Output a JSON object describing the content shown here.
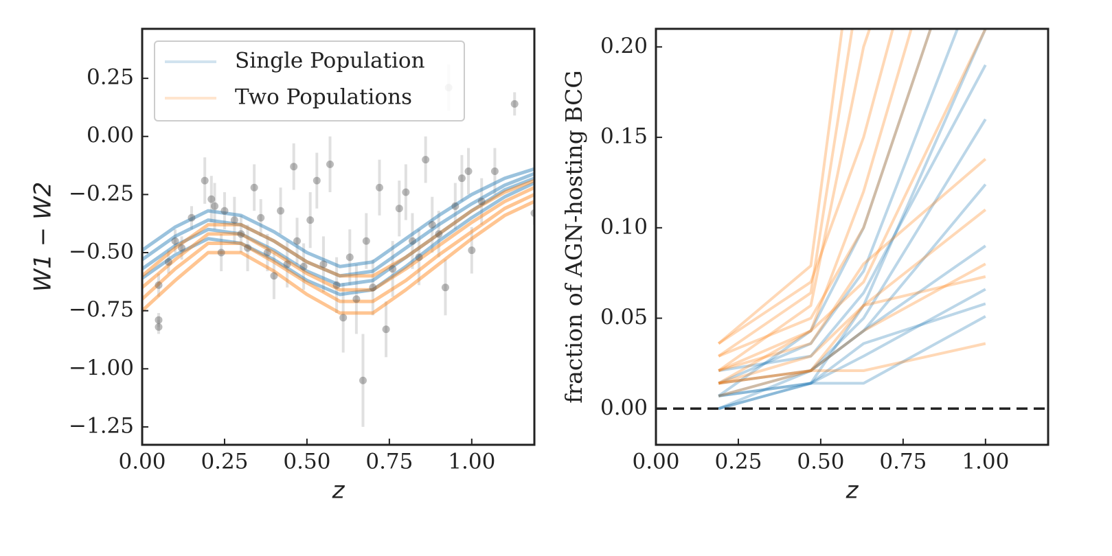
{
  "chart_data": [
    {
      "type": "scatter_curves",
      "xlabel": "z",
      "ylabel": "W1 − W2",
      "xlim": [
        0,
        1.19
      ],
      "ylim": [
        -1.327,
        0.463
      ],
      "xticks": [
        {
          "value": 0,
          "label": "0.00"
        },
        {
          "value": 0.25,
          "label": "0.25"
        },
        {
          "value": 0.5,
          "label": "0.50"
        },
        {
          "value": 0.75,
          "label": "0.75"
        },
        {
          "value": 1,
          "label": "1.00"
        }
      ],
      "yticks": [
        {
          "value": 0.25,
          "label": "0.25"
        },
        {
          "value": 0,
          "label": "0.00"
        },
        {
          "value": -0.25,
          "label": "−0.25"
        },
        {
          "value": -0.5,
          "label": "−0.50"
        },
        {
          "value": -0.75,
          "label": "−0.75"
        },
        {
          "value": -1,
          "label": "−1.00"
        },
        {
          "value": -1.25,
          "label": "−1.25"
        }
      ],
      "legend": "upper left",
      "x": [
        0,
        0.1,
        0.2,
        0.3,
        0.4,
        0.5,
        0.6,
        0.7,
        0.8,
        0.9,
        1.0,
        1.1,
        1.19
      ],
      "series": [
        {
          "name": "Single Population",
          "color": "#1f77b4",
          "curves": [
            [
              -0.49,
              -0.39,
              -0.32,
              -0.34,
              -0.41,
              -0.5,
              -0.56,
              -0.54,
              -0.44,
              -0.34,
              -0.25,
              -0.18,
              -0.14
            ],
            [
              -0.53,
              -0.43,
              -0.36,
              -0.38,
              -0.45,
              -0.54,
              -0.6,
              -0.58,
              -0.48,
              -0.38,
              -0.29,
              -0.21,
              -0.16
            ],
            [
              -0.57,
              -0.47,
              -0.4,
              -0.42,
              -0.49,
              -0.58,
              -0.64,
              -0.62,
              -0.52,
              -0.42,
              -0.32,
              -0.23,
              -0.18
            ],
            [
              -0.61,
              -0.51,
              -0.44,
              -0.46,
              -0.53,
              -0.62,
              -0.68,
              -0.66,
              -0.56,
              -0.45,
              -0.35,
              -0.26,
              -0.2
            ]
          ]
        },
        {
          "name": "Two Populations",
          "color": "#ff7f0e",
          "curves": [
            [
              -0.6,
              -0.48,
              -0.38,
              -0.38,
              -0.45,
              -0.54,
              -0.6,
              -0.6,
              -0.52,
              -0.42,
              -0.32,
              -0.24,
              -0.19
            ],
            [
              -0.65,
              -0.53,
              -0.42,
              -0.42,
              -0.5,
              -0.59,
              -0.66,
              -0.66,
              -0.57,
              -0.47,
              -0.37,
              -0.28,
              -0.22
            ],
            [
              -0.7,
              -0.57,
              -0.46,
              -0.46,
              -0.54,
              -0.63,
              -0.71,
              -0.71,
              -0.62,
              -0.51,
              -0.41,
              -0.31,
              -0.25
            ],
            [
              -0.75,
              -0.62,
              -0.5,
              -0.5,
              -0.58,
              -0.68,
              -0.76,
              -0.76,
              -0.66,
              -0.55,
              -0.44,
              -0.34,
              -0.28
            ]
          ]
        }
      ],
      "points": {
        "color": "#555555",
        "x": [
          0.05,
          0.05,
          0.05,
          0.08,
          0.1,
          0.12,
          0.15,
          0.19,
          0.21,
          0.22,
          0.24,
          0.25,
          0.28,
          0.3,
          0.32,
          0.34,
          0.36,
          0.38,
          0.4,
          0.42,
          0.44,
          0.46,
          0.47,
          0.49,
          0.51,
          0.53,
          0.55,
          0.57,
          0.59,
          0.61,
          0.63,
          0.65,
          0.67,
          0.68,
          0.7,
          0.72,
          0.74,
          0.76,
          0.78,
          0.8,
          0.82,
          0.84,
          0.86,
          0.88,
          0.9,
          0.92,
          0.93,
          0.95,
          0.97,
          0.99,
          1.0,
          1.03,
          1.07,
          1.13,
          1.19
        ],
        "y": [
          -0.79,
          -0.82,
          -0.64,
          -0.54,
          -0.45,
          -0.48,
          -0.35,
          -0.19,
          -0.27,
          -0.3,
          -0.5,
          -0.32,
          -0.36,
          -0.42,
          -0.48,
          -0.22,
          -0.35,
          -0.5,
          -0.6,
          -0.32,
          -0.55,
          -0.13,
          -0.45,
          -0.56,
          -0.36,
          -0.19,
          -0.55,
          -0.12,
          -0.64,
          -0.78,
          -0.52,
          -0.7,
          -1.05,
          -0.45,
          -0.65,
          -0.22,
          -0.83,
          -0.57,
          -0.31,
          -0.24,
          -0.45,
          -0.52,
          -0.1,
          -0.38,
          -0.42,
          -0.65,
          0.21,
          -0.3,
          -0.18,
          -0.15,
          -0.49,
          -0.28,
          -0.15,
          0.14,
          -0.33
        ],
        "yerr": [
          0.03,
          0.03,
          0.05,
          0.05,
          0.05,
          0.05,
          0.05,
          0.1,
          0.1,
          0.1,
          0.08,
          0.08,
          0.1,
          0.08,
          0.1,
          0.1,
          0.08,
          0.08,
          0.1,
          0.1,
          0.1,
          0.1,
          0.1,
          0.1,
          0.12,
          0.12,
          0.12,
          0.12,
          0.12,
          0.15,
          0.12,
          0.15,
          0.2,
          0.12,
          0.12,
          0.12,
          0.12,
          0.12,
          0.12,
          0.12,
          0.12,
          0.12,
          0.1,
          0.12,
          0.1,
          0.12,
          0.1,
          0.1,
          0.1,
          0.1,
          0.1,
          0.1,
          0.1,
          0.05,
          0.05
        ]
      }
    },
    {
      "type": "line",
      "xlabel": "z",
      "ylabel": "fraction of AGN-hosting BCG",
      "xlim": [
        0,
        1.19
      ],
      "ylim": [
        -0.02,
        0.21
      ],
      "xticks": [
        {
          "value": 0,
          "label": "0.00"
        },
        {
          "value": 0.25,
          "label": "0.25"
        },
        {
          "value": 0.5,
          "label": "0.50"
        },
        {
          "value": 0.75,
          "label": "0.75"
        },
        {
          "value": 1,
          "label": "1.00"
        }
      ],
      "yticks": [
        {
          "value": 0,
          "label": "0.00"
        },
        {
          "value": 0.05,
          "label": "0.05"
        },
        {
          "value": 0.1,
          "label": "0.10"
        },
        {
          "value": 0.15,
          "label": "0.15"
        },
        {
          "value": 0.2,
          "label": "0.20"
        }
      ],
      "reference_line": 0,
      "x": [
        0.19,
        0.47,
        0.63,
        1.0
      ],
      "series": [
        {
          "color": "#1f77b4",
          "curves": [
            [
              0.007,
              0.014,
              0.029,
              0.066
            ],
            [
              0.0,
              0.014,
              0.057,
              0.21
            ],
            [
              0.007,
              0.021,
              0.043,
              0.124
            ],
            [
              0.0,
              0.014,
              0.014,
              0.051
            ],
            [
              0.014,
              0.036,
              0.076,
              0.25
            ],
            [
              0.007,
              0.043,
              0.1,
              0.3
            ],
            [
              0.014,
              0.021,
              0.05,
              0.16
            ],
            [
              0.007,
              0.014,
              0.036,
              0.058
            ],
            [
              0.021,
              0.029,
              0.064,
              0.19
            ],
            [
              0.0,
              0.021,
              0.043,
              0.09
            ]
          ]
        },
        {
          "color": "#ff7f0e",
          "curves": [
            [
              0.014,
              0.021,
              0.043,
              0.08
            ],
            [
              0.014,
              0.021,
              0.057,
              0.073
            ],
            [
              0.036,
              0.079,
              0.3,
              0.5
            ],
            [
              0.029,
              0.064,
              0.25,
              0.45
            ],
            [
              0.021,
              0.057,
              0.2,
              0.4
            ],
            [
              0.014,
              0.043,
              0.12,
              0.35
            ],
            [
              0.021,
              0.036,
              0.08,
              0.138
            ],
            [
              0.007,
              0.021,
              0.021,
              0.036
            ],
            [
              0.029,
              0.05,
              0.1,
              0.3
            ],
            [
              0.014,
              0.029,
              0.057,
              0.11
            ],
            [
              0.021,
              0.043,
              0.07,
              0.21
            ],
            [
              0.036,
              0.07,
              0.15,
              0.4
            ]
          ]
        }
      ]
    }
  ]
}
